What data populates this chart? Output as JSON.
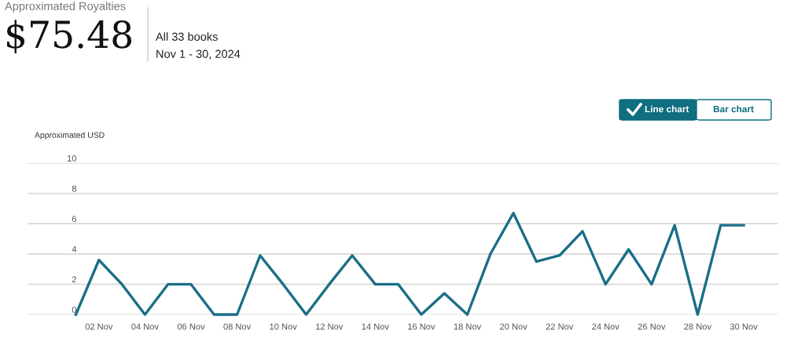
{
  "chart_data": {
    "type": "line",
    "title": "Approximated Royalties",
    "ylabel": "Approximated USD",
    "annotations": [
      "$75.48",
      "All 33 books",
      "Nov 1 - 30, 2024",
      "Line chart",
      "Bar chart"
    ],
    "categories": [
      null,
      "02 Nov",
      null,
      "04 Nov",
      null,
      "06 Nov",
      null,
      "08 Nov",
      null,
      "10 Nov",
      null,
      "12 Nov",
      null,
      "14 Nov",
      null,
      "16 Nov",
      null,
      "18 Nov",
      null,
      "20 Nov",
      null,
      "22 Nov",
      null,
      "24 Nov",
      null,
      "26 Nov",
      null,
      "28 Nov",
      null,
      "30 Nov"
    ],
    "series": [
      {
        "color": "#1a6e87",
        "values": [
          0,
          3.6,
          2,
          0,
          2,
          2,
          0,
          0,
          3.9,
          2,
          0,
          2,
          3.9,
          2,
          2,
          0,
          1.4,
          0,
          4,
          6.7,
          3.5,
          3.9,
          5.5,
          2,
          4.3,
          2,
          5.9,
          0,
          5.9,
          5.9
        ]
      }
    ],
    "ylim": [
      0,
      10
    ],
    "yticks": [
      0,
      2,
      4,
      6,
      8,
      10
    ],
    "grid": "y",
    "legend": false,
    "marker": "none",
    "line_style": "solid"
  }
}
